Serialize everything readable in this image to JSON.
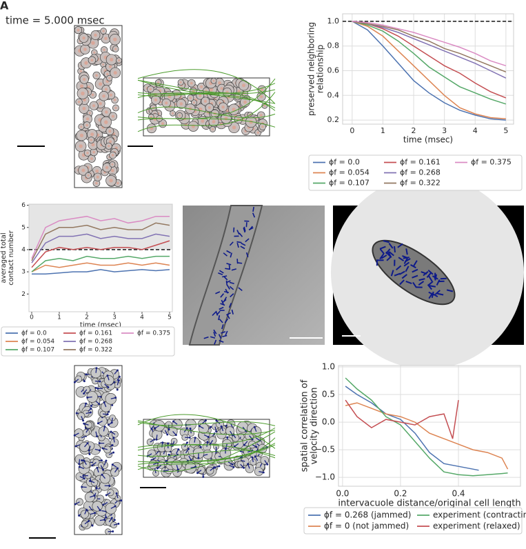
{
  "header": {
    "panel_label": "A",
    "time_label": "time = 5.000 msec"
  },
  "chart_data": [
    {
      "type": "line",
      "xlabel": "time (msec)",
      "ylabel": [
        "preserved neighboring",
        "relationship"
      ],
      "x": [
        0,
        0.5,
        1,
        1.5,
        2,
        2.5,
        3,
        3.5,
        4,
        4.5,
        5
      ],
      "xlim": [
        -0.31,
        5.25
      ],
      "xticks": [
        0,
        1,
        2,
        3,
        4,
        5
      ],
      "ylim": [
        0.167,
        1.061
      ],
      "yticks": [
        0.2,
        0.4,
        0.6,
        0.8,
        {
          "value": 1.0,
          "label": "1.0"
        }
      ],
      "grid": true,
      "hline": 1.0,
      "legend_rows": 3,
      "series": [
        {
          "name": "ϕf = 0.0",
          "color": "#4c72b0",
          "values": [
            1.0,
            0.93,
            0.8,
            0.66,
            0.52,
            0.42,
            0.34,
            0.28,
            0.24,
            0.21,
            0.2
          ]
        },
        {
          "name": "ϕf = 0.054",
          "color": "#dd8452",
          "values": [
            1.0,
            0.96,
            0.88,
            0.76,
            0.64,
            0.52,
            0.4,
            0.3,
            0.25,
            0.22,
            0.21
          ]
        },
        {
          "name": "ϕf = 0.107",
          "color": "#55a868",
          "values": [
            1.0,
            0.97,
            0.92,
            0.84,
            0.74,
            0.63,
            0.55,
            0.47,
            0.42,
            0.37,
            0.33
          ]
        },
        {
          "name": "ϕf = 0.161",
          "color": "#c44e52",
          "values": [
            1.0,
            0.98,
            0.94,
            0.88,
            0.8,
            0.72,
            0.64,
            0.58,
            0.5,
            0.43,
            0.38
          ]
        },
        {
          "name": "ϕf = 0.268",
          "color": "#8172b3",
          "values": [
            1.0,
            0.98,
            0.95,
            0.91,
            0.86,
            0.81,
            0.76,
            0.71,
            0.66,
            0.6,
            0.54
          ]
        },
        {
          "name": "ϕf = 0.322",
          "color": "#937860",
          "values": [
            1.0,
            0.98,
            0.96,
            0.93,
            0.88,
            0.84,
            0.78,
            0.74,
            0.69,
            0.64,
            0.59
          ]
        },
        {
          "name": "ϕf = 0.375",
          "color": "#da8bc3",
          "values": [
            1.0,
            0.99,
            0.97,
            0.94,
            0.91,
            0.87,
            0.83,
            0.79,
            0.74,
            0.68,
            0.64
          ]
        }
      ]
    },
    {
      "type": "line",
      "xlabel": "time (msec)",
      "ylabel": [
        "averaged total",
        "contact number"
      ],
      "x": [
        0,
        0.5,
        1,
        1.5,
        2,
        2.5,
        3,
        3.5,
        4,
        4.5,
        5
      ],
      "xlim": [
        -0.1,
        5.1
      ],
      "xticks": [
        0,
        1,
        2,
        3,
        4,
        5
      ],
      "ylim": [
        1.2,
        6.05
      ],
      "yticks": [
        2,
        3,
        4,
        5,
        6
      ],
      "grid": false,
      "hline": 4,
      "shade_above_hline": true,
      "legend_rows": 3,
      "series": [
        {
          "name": "ϕf = 0.0",
          "color": "#4c72b0",
          "values": [
            2.9,
            2.9,
            2.95,
            3.0,
            3.0,
            3.1,
            3.0,
            3.05,
            3.1,
            3.05,
            3.1
          ]
        },
        {
          "name": "ϕf = 0.054",
          "color": "#dd8452",
          "values": [
            3.0,
            3.3,
            3.2,
            3.3,
            3.4,
            3.3,
            3.3,
            3.4,
            3.3,
            3.4,
            3.3
          ]
        },
        {
          "name": "ϕf = 0.107",
          "color": "#55a868",
          "values": [
            3.0,
            3.5,
            3.6,
            3.5,
            3.7,
            3.6,
            3.6,
            3.7,
            3.6,
            3.7,
            3.7
          ]
        },
        {
          "name": "ϕf = 0.161",
          "color": "#c44e52",
          "values": [
            3.2,
            3.9,
            4.1,
            4.0,
            4.1,
            4.0,
            4.1,
            4.1,
            4.0,
            4.2,
            4.4
          ]
        },
        {
          "name": "ϕf = 0.268",
          "color": "#8172b3",
          "values": [
            3.4,
            4.3,
            4.6,
            4.6,
            4.7,
            4.5,
            4.6,
            4.5,
            4.5,
            4.7,
            4.6
          ]
        },
        {
          "name": "ϕf = 0.322",
          "color": "#937860",
          "values": [
            3.5,
            4.7,
            5.0,
            5.0,
            5.1,
            4.9,
            5.0,
            4.9,
            4.9,
            5.2,
            5.1
          ]
        },
        {
          "name": "ϕf = 0.375",
          "color": "#da8bc3",
          "values": [
            3.6,
            5.0,
            5.3,
            5.4,
            5.5,
            5.3,
            5.4,
            5.2,
            5.3,
            5.5,
            5.5
          ]
        }
      ]
    },
    {
      "type": "line",
      "xlabel": "intervacuole distance/original cell length",
      "ylabel": [
        "spatial correlation of",
        "velocity direction"
      ],
      "xlim": [
        -0.014,
        0.614
      ],
      "xticks": [
        {
          "value": 0.0,
          "label": "0.0"
        },
        0.2,
        0.4
      ],
      "ylim": [
        -1.16,
        1.025
      ],
      "yticks": [
        {
          "value": -1.0,
          "label": "−1.0"
        },
        {
          "value": -0.5,
          "label": "−0.5"
        },
        {
          "value": 0.0,
          "label": "0.0"
        },
        0.5,
        {
          "value": 1.0,
          "label": "1.0"
        }
      ],
      "grid": true,
      "legend_rows": 2,
      "series": [
        {
          "name": "ϕf = 0.268 (jammed)",
          "color": "#4c72b0",
          "x": [
            0.01,
            0.05,
            0.1,
            0.15,
            0.2,
            0.25,
            0.3,
            0.35,
            0.4,
            0.45,
            0.47
          ],
          "values": [
            0.65,
            0.5,
            0.35,
            0.15,
            0.05,
            -0.2,
            -0.55,
            -0.75,
            -0.8,
            -0.85,
            -0.87
          ]
        },
        {
          "name": "ϕf = 0 (not jammed)",
          "color": "#dd8452",
          "x": [
            0.01,
            0.05,
            0.1,
            0.15,
            0.2,
            0.25,
            0.3,
            0.35,
            0.4,
            0.45,
            0.5,
            0.55,
            0.57
          ],
          "values": [
            0.3,
            0.35,
            0.25,
            0.15,
            0.1,
            0.0,
            -0.2,
            -0.3,
            -0.4,
            -0.5,
            -0.55,
            -0.65,
            -0.85
          ]
        },
        {
          "name": "experiment (contracting)",
          "color": "#55a868",
          "x": [
            0.01,
            0.05,
            0.1,
            0.15,
            0.2,
            0.25,
            0.3,
            0.35,
            0.4,
            0.45,
            0.5,
            0.55,
            0.57
          ],
          "values": [
            0.8,
            0.6,
            0.4,
            0.1,
            -0.05,
            -0.35,
            -0.65,
            -0.9,
            -0.95,
            -0.97,
            -0.95,
            -0.93,
            -0.92
          ]
        },
        {
          "name": "experiment (relaxed)",
          "color": "#c44e52",
          "x": [
            0.01,
            0.05,
            0.1,
            0.15,
            0.2,
            0.25,
            0.3,
            0.35,
            0.38,
            0.4
          ],
          "values": [
            0.4,
            0.1,
            -0.1,
            0.05,
            0.0,
            -0.05,
            0.1,
            0.15,
            -0.3,
            0.4
          ]
        }
      ]
    }
  ]
}
